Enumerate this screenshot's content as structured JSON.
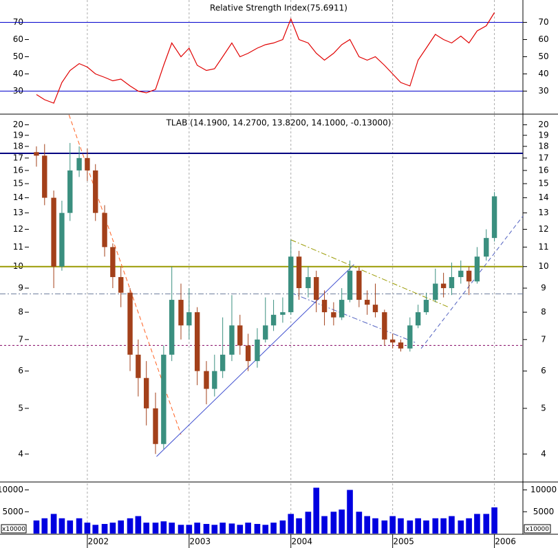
{
  "chart_data": [
    {
      "type": "line",
      "title": "Relative Strength Index(75.6911)",
      "color": "#e00000",
      "x": [
        2001.5,
        2001.58,
        2001.67,
        2001.75,
        2001.83,
        2001.92,
        2002.0,
        2002.08,
        2002.17,
        2002.25,
        2002.33,
        2002.42,
        2002.5,
        2002.58,
        2002.67,
        2002.75,
        2002.83,
        2002.92,
        2003.0,
        2003.08,
        2003.17,
        2003.25,
        2003.33,
        2003.42,
        2003.5,
        2003.58,
        2003.67,
        2003.75,
        2003.83,
        2003.92,
        2004.0,
        2004.08,
        2004.17,
        2004.25,
        2004.33,
        2004.42,
        2004.5,
        2004.58,
        2004.67,
        2004.75,
        2004.83,
        2004.92,
        2005.0,
        2005.08,
        2005.17,
        2005.25,
        2005.33,
        2005.42,
        2005.5,
        2005.58,
        2005.67,
        2005.75,
        2005.83,
        2005.92,
        2006.0
      ],
      "values": [
        28,
        25,
        23,
        35,
        42,
        46,
        44,
        40,
        38,
        36,
        37,
        33,
        30,
        29,
        31,
        45,
        58,
        50,
        55,
        45,
        42,
        43,
        50,
        58,
        50,
        52,
        55,
        57,
        58,
        60,
        72,
        60,
        58,
        52,
        48,
        52,
        57,
        60,
        50,
        48,
        50,
        45,
        40,
        35,
        33,
        48,
        55,
        63,
        60,
        58,
        62,
        58,
        65,
        68,
        75.7
      ],
      "xlim": [
        2001.48,
        2006.28
      ],
      "ylim": [
        17,
        83
      ],
      "yticks": [
        30,
        40,
        50,
        60,
        70
      ],
      "hlines": [
        {
          "value": 30,
          "color": "#0000cc",
          "style": "solid"
        },
        {
          "value": 70,
          "color": "#0000cc",
          "style": "solid"
        }
      ]
    },
    {
      "type": "candlestick",
      "title": "TLAB (14.1900, 14.2700, 13.8200, 14.1000, -0.13000)",
      "log_scale": true,
      "up_color": "#3a8f7f",
      "down_color": "#a3401a",
      "x": [
        2001.5,
        2001.58,
        2001.67,
        2001.75,
        2001.83,
        2001.92,
        2002.0,
        2002.08,
        2002.17,
        2002.25,
        2002.33,
        2002.42,
        2002.5,
        2002.58,
        2002.67,
        2002.75,
        2002.83,
        2002.92,
        2003.0,
        2003.08,
        2003.17,
        2003.25,
        2003.33,
        2003.42,
        2003.5,
        2003.58,
        2003.67,
        2003.75,
        2003.83,
        2003.92,
        2004.0,
        2004.08,
        2004.17,
        2004.25,
        2004.33,
        2004.42,
        2004.5,
        2004.58,
        2004.67,
        2004.75,
        2004.83,
        2004.92,
        2005.0,
        2005.08,
        2005.17,
        2005.25,
        2005.33,
        2005.42,
        2005.5,
        2005.58,
        2005.67,
        2005.75,
        2005.83,
        2005.92,
        2006.0
      ],
      "open": [
        17.5,
        17.2,
        14,
        10,
        13,
        16,
        17,
        16,
        13,
        11,
        9.5,
        8.8,
        6.5,
        5.8,
        5.0,
        4.2,
        6.5,
        8.5,
        7.5,
        8.0,
        6.0,
        5.5,
        6.0,
        6.5,
        7.5,
        6.8,
        6.3,
        7.0,
        7.5,
        7.9,
        8.0,
        10.5,
        9.0,
        9.5,
        8.5,
        8.0,
        7.8,
        8.5,
        9.8,
        8.5,
        8.3,
        8.0,
        7.0,
        6.9,
        6.7,
        7.5,
        8.0,
        8.5,
        9.2,
        9.0,
        9.5,
        9.8,
        9.3,
        10.5,
        11.5
      ],
      "high": [
        18.0,
        18.2,
        14.5,
        13.8,
        18.3,
        18.0,
        17.8,
        16.5,
        13.5,
        11.2,
        10.0,
        9.0,
        7.0,
        6.3,
        5.4,
        6.8,
        10.0,
        9.2,
        9.0,
        8.2,
        6.3,
        6.5,
        7.8,
        8.7,
        7.9,
        7.2,
        7.4,
        8.6,
        8.5,
        8.6,
        11.4,
        10.8,
        10.0,
        9.8,
        8.9,
        8.4,
        9.0,
        10.3,
        10.0,
        8.9,
        9.2,
        8.1,
        7.2,
        7.0,
        7.8,
        8.3,
        8.8,
        9.9,
        9.7,
        10.2,
        10.3,
        10.0,
        11.0,
        12.0,
        14.4
      ],
      "low": [
        16.3,
        13.5,
        9.0,
        9.8,
        12.5,
        15.5,
        15.2,
        12.5,
        10.5,
        9.0,
        8.2,
        6.0,
        5.3,
        4.6,
        4.0,
        4.1,
        6.3,
        7.0,
        7.0,
        5.6,
        5.1,
        5.3,
        5.8,
        6.3,
        6.5,
        6.0,
        6.1,
        6.9,
        7.3,
        7.6,
        7.9,
        8.5,
        8.6,
        8.0,
        7.5,
        7.5,
        7.7,
        8.4,
        8.2,
        7.9,
        7.8,
        6.8,
        6.7,
        6.6,
        6.6,
        7.4,
        7.9,
        8.4,
        8.6,
        8.7,
        9.2,
        8.7,
        9.2,
        10.3,
        11.3
      ],
      "close": [
        17.2,
        14,
        10,
        13,
        16,
        17,
        16,
        13,
        11,
        9.5,
        8.8,
        6.5,
        5.8,
        5.0,
        4.2,
        6.5,
        8.5,
        7.5,
        8.0,
        6.0,
        5.5,
        6.0,
        6.5,
        7.5,
        6.8,
        6.3,
        7.0,
        7.5,
        7.9,
        8.0,
        10.5,
        9.0,
        9.5,
        8.5,
        8.0,
        7.8,
        8.5,
        9.8,
        8.5,
        8.3,
        8.0,
        7.0,
        6.9,
        6.7,
        7.5,
        8.0,
        8.5,
        9.2,
        9.0,
        9.5,
        9.8,
        9.3,
        10.5,
        11.5,
        14.1
      ],
      "xlim": [
        2001.48,
        2006.28
      ],
      "ylim": [
        3.5,
        21
      ],
      "yticks": [
        4,
        5,
        6,
        7,
        8,
        9,
        10,
        11,
        12,
        13,
        14,
        15,
        16,
        17,
        18,
        19,
        20
      ],
      "hlines": [
        {
          "value": 17.4,
          "color": "#000080",
          "style": "thick"
        },
        {
          "value": 10,
          "color": "#999900",
          "style": "thick"
        },
        {
          "value": 8.75,
          "color": "#6a7a9a",
          "style": "dashdot"
        },
        {
          "value": 6.8,
          "color": "#800060",
          "style": "dotted"
        }
      ],
      "trendlines": [
        {
          "start": [
            2001.82,
            21
          ],
          "end": [
            2002.92,
            4.4
          ],
          "color": "#ff6020",
          "style": "dashed"
        },
        {
          "start": [
            2002.68,
            3.95
          ],
          "end": [
            2004.62,
            10.1
          ],
          "color": "#4050d0",
          "style": "solid"
        },
        {
          "start": [
            2004.0,
            11.4
          ],
          "end": [
            2005.55,
            8.2
          ],
          "color": "#999900",
          "style": "dashdot"
        },
        {
          "start": [
            2004.0,
            8.8
          ],
          "end": [
            2005.22,
            6.9
          ],
          "color": "#5060c0",
          "style": "dashdot"
        },
        {
          "start": [
            2005.28,
            6.7
          ],
          "end": [
            2006.28,
            12.8
          ],
          "color": "#5060c0",
          "style": "dashed"
        }
      ]
    },
    {
      "type": "bar",
      "color": "#0000e0",
      "unit_label": "x10000",
      "x": [
        2001.5,
        2001.58,
        2001.67,
        2001.75,
        2001.83,
        2001.92,
        2002.0,
        2002.08,
        2002.17,
        2002.25,
        2002.33,
        2002.42,
        2002.5,
        2002.58,
        2002.67,
        2002.75,
        2002.83,
        2002.92,
        2003.0,
        2003.08,
        2003.17,
        2003.25,
        2003.33,
        2003.42,
        2003.5,
        2003.58,
        2003.67,
        2003.75,
        2003.83,
        2003.92,
        2004.0,
        2004.08,
        2004.17,
        2004.25,
        2004.33,
        2004.42,
        2004.5,
        2004.58,
        2004.67,
        2004.75,
        2004.83,
        2004.92,
        2005.0,
        2005.08,
        2005.17,
        2005.25,
        2005.33,
        2005.42,
        2005.5,
        2005.58,
        2005.67,
        2005.75,
        2005.83,
        2005.92,
        2006.0
      ],
      "values": [
        3000,
        3500,
        4500,
        3500,
        3000,
        3500,
        2500,
        2000,
        2200,
        2500,
        3000,
        3500,
        4000,
        2500,
        2500,
        2800,
        2500,
        2000,
        2000,
        2500,
        2200,
        2000,
        2500,
        2300,
        2000,
        2500,
        2200,
        2000,
        2500,
        3000,
        4500,
        3500,
        5000,
        10500,
        4000,
        5000,
        5500,
        10000,
        5000,
        4000,
        3500,
        3000,
        4000,
        3500,
        3000,
        3500,
        3000,
        3500,
        3500,
        4000,
        3000,
        3500,
        4500,
        4500,
        6000
      ],
      "xlim": [
        2001.48,
        2006.28
      ],
      "ylim": [
        0,
        11500
      ],
      "yticks": [
        5000,
        10000
      ],
      "xticks": [
        2002,
        2003,
        2004,
        2005,
        2006
      ]
    }
  ]
}
